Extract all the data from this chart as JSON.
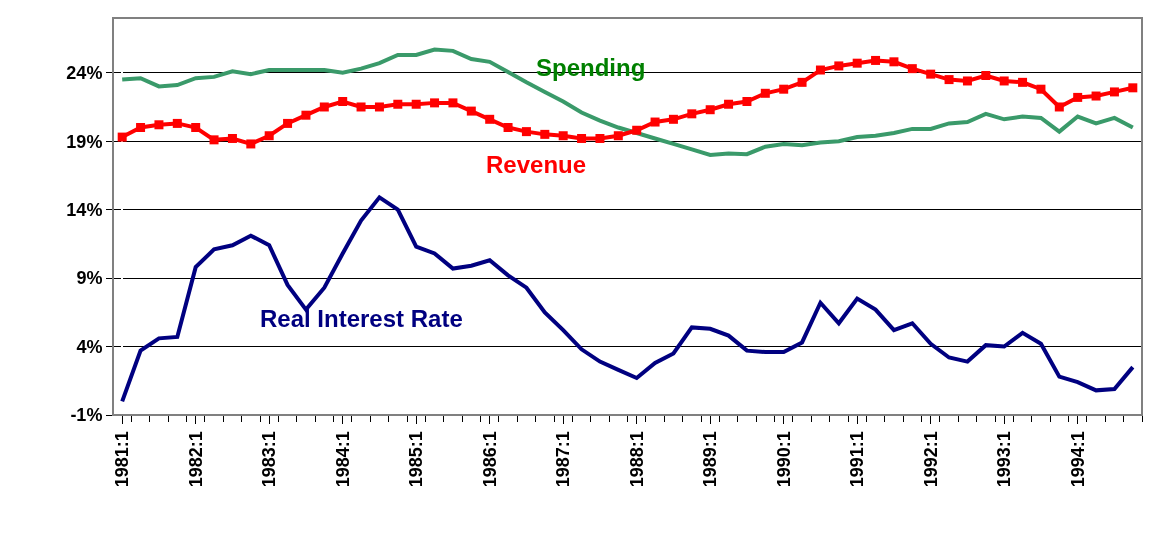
{
  "chart_data": {
    "type": "line",
    "categories": [
      "1981:1",
      null,
      null,
      null,
      "1982:1",
      null,
      null,
      null,
      "1983:1",
      null,
      null,
      null,
      "1984:1",
      null,
      null,
      null,
      "1985:1",
      null,
      null,
      null,
      "1986:1",
      null,
      null,
      null,
      "1987:1",
      null,
      null,
      null,
      "1988:1",
      null,
      null,
      null,
      "1989:1",
      null,
      null,
      null,
      "1990:1",
      null,
      null,
      null,
      "1991:1",
      null,
      null,
      null,
      "1992:1",
      null,
      null,
      null,
      "1993:1",
      null,
      null,
      null,
      "1994:1",
      null,
      null,
      null
    ],
    "series": [
      {
        "name": "Spending",
        "color": "#3a9a6a",
        "marker": "none",
        "values": [
          23.5,
          23.6,
          23.0,
          23.1,
          23.6,
          23.7,
          24.1,
          23.9,
          24.2,
          24.2,
          24.2,
          24.2,
          24.0,
          24.3,
          24.7,
          25.3,
          25.3,
          25.7,
          25.6,
          25.0,
          24.8,
          24.05,
          23.3,
          22.6,
          21.9,
          21.1,
          20.5,
          20.0,
          19.6,
          19.2,
          18.8,
          18.4,
          18.0,
          18.1,
          18.05,
          18.6,
          18.8,
          18.7,
          18.9,
          19.0,
          19.3,
          19.4,
          19.6,
          19.9,
          19.9,
          20.3,
          20.4,
          21.0,
          20.6,
          20.8,
          20.7,
          19.7,
          20.8,
          20.3,
          20.7,
          20.0
        ]
      },
      {
        "name": "Revenue",
        "color": "#ff0000",
        "marker": "square",
        "values": [
          19.3,
          20.0,
          20.2,
          20.3,
          20.0,
          19.1,
          19.2,
          18.8,
          19.4,
          20.3,
          20.9,
          21.5,
          21.9,
          21.5,
          21.5,
          21.7,
          21.7,
          21.8,
          21.8,
          21.2,
          20.6,
          20.0,
          19.7,
          19.5,
          19.4,
          19.2,
          19.2,
          19.4,
          19.8,
          20.4,
          20.6,
          21.0,
          21.3,
          21.7,
          21.9,
          22.5,
          22.8,
          23.3,
          24.2,
          24.5,
          24.7,
          24.9,
          24.8,
          24.3,
          23.9,
          23.5,
          23.4,
          23.8,
          23.4,
          23.3,
          22.8,
          21.5,
          22.2,
          22.3,
          22.6,
          22.9
        ]
      },
      {
        "name": "Real Interest Rate",
        "color": "#000080",
        "marker": "none",
        "values": [
          0.0,
          3.7,
          4.6,
          4.7,
          9.8,
          11.1,
          11.4,
          12.1,
          11.4,
          8.5,
          6.7,
          8.3,
          10.8,
          13.2,
          14.9,
          14.0,
          11.3,
          10.8,
          9.7,
          9.9,
          10.3,
          9.2,
          8.3,
          6.5,
          5.2,
          3.8,
          2.9,
          2.3,
          1.7,
          2.8,
          3.5,
          5.4,
          5.3,
          4.8,
          3.7,
          3.6,
          3.6,
          4.3,
          7.2,
          5.7,
          7.5,
          6.7,
          5.2,
          5.7,
          4.2,
          3.2,
          2.9,
          4.1,
          4.0,
          5.0,
          4.2,
          1.8,
          1.4,
          0.8,
          0.9,
          2.5
        ]
      }
    ],
    "ylim": [
      -1,
      28
    ],
    "yticks": [
      {
        "value": -1,
        "label": "-1%"
      },
      {
        "value": 4,
        "label": "4%"
      },
      {
        "value": 9,
        "label": "9%"
      },
      {
        "value": 14,
        "label": "14%"
      },
      {
        "value": 19,
        "label": "19%"
      },
      {
        "value": 24,
        "label": "24%"
      }
    ],
    "grid": "y",
    "legend": false,
    "line_style": "solid"
  }
}
